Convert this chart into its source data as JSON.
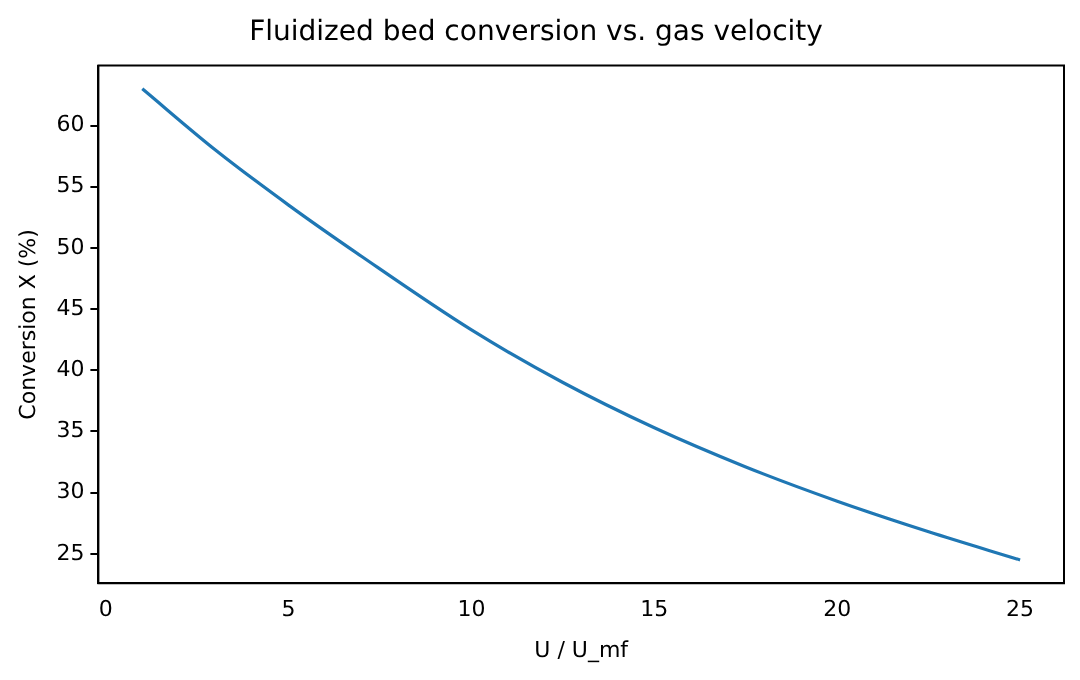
{
  "chart_data": {
    "type": "line",
    "title": "Fluidized bed conversion vs. gas velocity",
    "xlabel": "U / U_mf",
    "ylabel": "Conversion X (%)",
    "x": [
      1,
      3,
      5,
      7,
      10,
      12.5,
      15,
      17.5,
      20,
      22.5,
      25
    ],
    "series": [
      {
        "color": "#1f77b4",
        "values": [
          63,
          58,
          53.5,
          49.3,
          43.3,
          39,
          35.3,
          32.1,
          29.3,
          26.8,
          24.5
        ]
      }
    ],
    "xlim": [
      -0.2,
      26.2
    ],
    "ylim": [
      22.6,
      64.9
    ],
    "xticks": [
      0,
      5,
      10,
      15,
      20,
      25
    ],
    "yticks": [
      25,
      30,
      35,
      40,
      45,
      50,
      55,
      60
    ],
    "grid": false,
    "legend": false,
    "marker": "none",
    "line_style": "solid"
  }
}
